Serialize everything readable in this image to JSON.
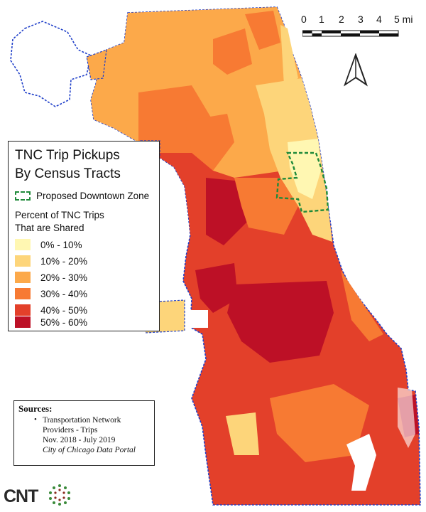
{
  "legend": {
    "title_line1": "TNC Trip Pickups",
    "title_line2": "By Census Tracts",
    "zone_label": "Proposed Downtown Zone",
    "subhead_line1": "Percent of TNC Trips",
    "subhead_line2": "That are Shared",
    "classes": [
      {
        "label": "0% - 10%",
        "color": "#fff7b2"
      },
      {
        "label": "10% - 20%",
        "color": "#fdd57a"
      },
      {
        "label": "20% - 30%",
        "color": "#fca94a"
      },
      {
        "label": "30% - 40%",
        "color": "#f77a33"
      },
      {
        "label": "40% - 50%",
        "color": "#e3402a"
      },
      {
        "label": "50% - 60%",
        "color": "#bd1026"
      }
    ]
  },
  "sources": {
    "heading": "Sources:",
    "line1": "Transportation Network",
    "line2": "Providers - Trips",
    "line3": "Nov. 2018 - July 2019",
    "line4": "City of Chicago Data Portal"
  },
  "scale_bar": {
    "ticks": [
      "0",
      "1",
      "2",
      "3",
      "4",
      "5 mi"
    ]
  },
  "logo": {
    "text": "CNT"
  },
  "colors": {
    "boundary": "#1f3fc9",
    "downtown_zone": "#1f8a3a",
    "lake": "#ffffff"
  }
}
